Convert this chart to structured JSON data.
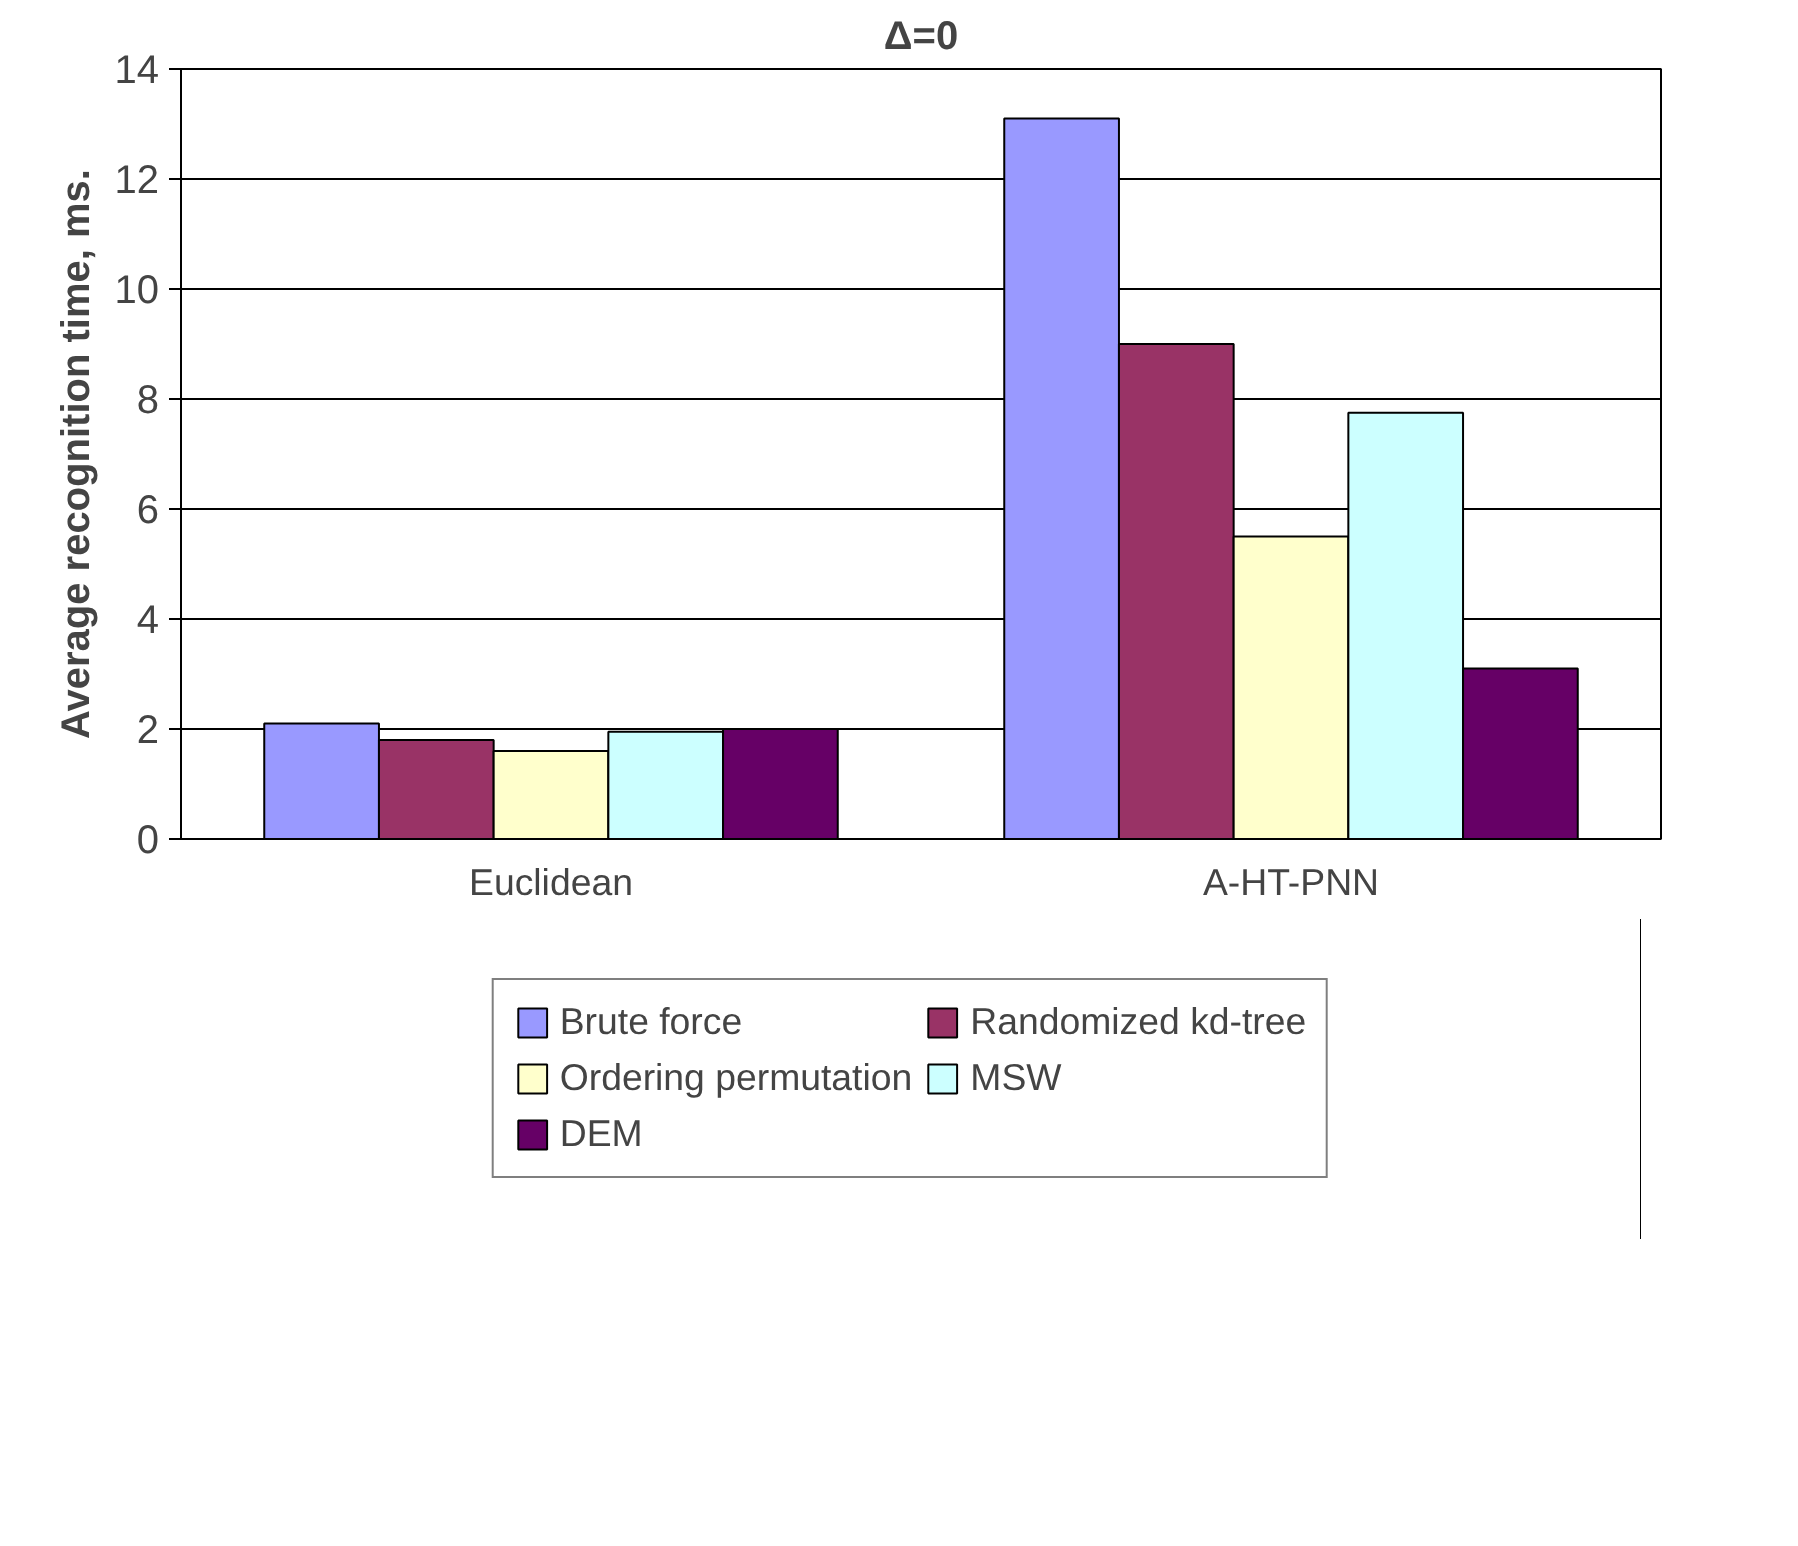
{
  "chart_data": {
    "type": "bar",
    "title": "Δ=0",
    "ylabel": "Average recognition time, ms.",
    "categories": [
      "Euclidean",
      "A-HT-PNN"
    ],
    "series": [
      {
        "name": "Brute force",
        "color": "#9999ff",
        "values": [
          2.1,
          13.1
        ]
      },
      {
        "name": "Randomized kd-tree",
        "color": "#993366",
        "values": [
          1.8,
          9.0
        ]
      },
      {
        "name": "Ordering permutation",
        "color": "#ffffcc",
        "values": [
          1.6,
          5.5
        ]
      },
      {
        "name": "MSW",
        "color": "#ccffff",
        "values": [
          1.95,
          7.75
        ]
      },
      {
        "name": "DEM",
        "color": "#660066",
        "values": [
          2.0,
          3.1
        ]
      }
    ],
    "ylim": [
      0,
      14
    ],
    "yticks": [
      0,
      2,
      4,
      6,
      8,
      10,
      12,
      14
    ],
    "grid": "y",
    "legend": "bottom"
  }
}
